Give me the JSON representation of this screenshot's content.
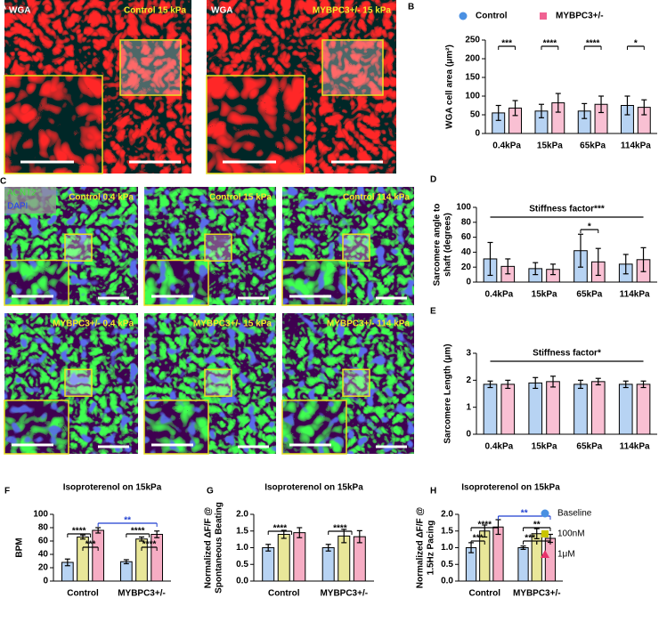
{
  "images": [
    {
      "label": "A",
      "panels": [
        {
          "tag": "WGA",
          "caption": "Control 15 kPa"
        },
        {
          "tag": "WGA",
          "caption": "MYBPC3+/- 15 kPa"
        }
      ]
    },
    {
      "label": "C",
      "stains": [
        "ACNT2",
        "DAPI"
      ],
      "panels": [
        {
          "caption": "Control 0.4 kPa"
        },
        {
          "caption": "Control 15 kPa"
        },
        {
          "caption": "Control 114 kPa"
        },
        {
          "caption": "MYBPC3+/- 0.4 kPa"
        },
        {
          "caption": "MYBPC3+/- 15 kPa"
        },
        {
          "caption": "MYBPC3+/- 114 kPa"
        }
      ]
    }
  ],
  "chart_data": [
    {
      "type": "bar",
      "label": "B",
      "ylabel": [
        "WGA cell area (μm²)"
      ],
      "categories": [
        "0.4kPa",
        "15kPa",
        "65kPa",
        "114kPa"
      ],
      "series": [
        {
          "name": "Control",
          "color": "#4a90e2",
          "marker": "circle",
          "values": [
            55,
            60,
            60,
            75
          ],
          "errors": [
            20,
            18,
            20,
            25
          ]
        },
        {
          "name": "MYBPC3+/-",
          "color": "#f06292",
          "marker": "square",
          "values": [
            68,
            82,
            78,
            70
          ],
          "errors": [
            20,
            25,
            22,
            20
          ]
        }
      ],
      "ylim": [
        0,
        250
      ],
      "yticks": [
        0,
        50,
        100,
        150,
        200,
        250
      ],
      "legend": "top",
      "annotations": [
        {
          "text": "***"
        },
        {
          "text": "****"
        },
        {
          "text": "****"
        },
        {
          "text": "*"
        }
      ]
    },
    {
      "type": "bar",
      "label": "D",
      "ylabel": [
        "Sarcomere angle to",
        "shaft (degrees)"
      ],
      "categories": [
        "0.4kPa",
        "15kPa",
        "65kPa",
        "114kPa"
      ],
      "series": [
        {
          "color": "#4a90e2",
          "values": [
            31,
            18,
            42,
            24
          ],
          "errors": [
            22,
            8,
            22,
            13
          ]
        },
        {
          "color": "#f06292",
          "values": [
            21,
            17,
            27,
            30
          ],
          "errors": [
            10,
            7,
            18,
            16
          ]
        }
      ],
      "ylim": [
        0,
        100
      ],
      "yticks": [
        0,
        20,
        40,
        60,
        80,
        100
      ],
      "annotations": [
        {
          "text": "Stiffness factor***"
        },
        {
          "text": "*"
        }
      ]
    },
    {
      "type": "bar",
      "label": "E",
      "ylabel": [
        "Sarcomere Length (μm)"
      ],
      "categories": [
        "0.4kPa",
        "15kPa",
        "65kPa",
        "114kPa"
      ],
      "series": [
        {
          "color": "#4a90e2",
          "values": [
            1.85,
            1.9,
            1.85,
            1.85
          ],
          "errors": [
            0.12,
            0.2,
            0.15,
            0.12
          ]
        },
        {
          "color": "#f06292",
          "values": [
            1.85,
            1.95,
            1.95,
            1.85
          ],
          "errors": [
            0.15,
            0.2,
            0.12,
            0.12
          ]
        }
      ],
      "ylim": [
        0,
        3
      ],
      "yticks": [
        0,
        1,
        2,
        3
      ],
      "annotations": [
        {
          "text": "Stiffness factor*"
        }
      ]
    },
    {
      "type": "bar",
      "label": "F",
      "title": "Isoproterenol on 15kPa",
      "ylabel": [
        "BPM"
      ],
      "categories": [
        "Control",
        "MYBPC3+/-"
      ],
      "series": [
        {
          "color": "#4a90e2",
          "values": [
            28,
            29
          ],
          "errors": [
            5,
            3
          ]
        },
        {
          "color": "#c9c400",
          "values": [
            66,
            63
          ],
          "errors": [
            3,
            3
          ]
        },
        {
          "color": "#e8336b",
          "values": [
            76,
            70
          ],
          "errors": [
            4,
            5
          ]
        }
      ],
      "ylim": [
        0,
        100
      ],
      "yticks": [
        0,
        20,
        40,
        60,
        80,
        100
      ],
      "annotations": [
        {
          "text": "****"
        },
        {
          "text": "***"
        },
        {
          "text": "****"
        },
        {
          "text": "****"
        },
        {
          "text": "**",
          "color": "#1f3fd0"
        }
      ]
    },
    {
      "type": "bar",
      "label": "G",
      "title": "Isoproterenol on 15kPa",
      "ylabel": [
        "Normalized ΔF/F @",
        "Spontaneous Beating"
      ],
      "categories": [
        "Control",
        "MYBPC3+/-"
      ],
      "series": [
        {
          "color": "#4a90e2",
          "values": [
            1.0,
            1.0
          ],
          "errors": [
            0.1,
            0.1
          ]
        },
        {
          "color": "#c9c400",
          "values": [
            1.4,
            1.35
          ],
          "errors": [
            0.12,
            0.2
          ]
        },
        {
          "color": "#e8336b",
          "values": [
            1.45,
            1.33
          ],
          "errors": [
            0.15,
            0.18
          ]
        }
      ],
      "ylim": [
        0,
        2
      ],
      "yticks": [
        {
          "value": 0,
          "label": "0.0"
        },
        0.5,
        {
          "value": 1,
          "label": "1.0"
        },
        1.5,
        {
          "value": 2,
          "label": "2.0"
        }
      ],
      "annotations": [
        {
          "text": "****"
        },
        {
          "text": "****"
        }
      ]
    },
    {
      "type": "bar",
      "label": "H",
      "title": "Isoproterenol on 15kPa",
      "ylabel": [
        "Normalized ΔF/F @",
        "1.5Hz Pacing"
      ],
      "categories": [
        "Control",
        "MYBPC3+/-"
      ],
      "series": [
        {
          "name": "Baseline",
          "color": "#4a90e2",
          "marker": "circle",
          "values": [
            1.0,
            1.0
          ],
          "errors": [
            0.15,
            0.05
          ]
        },
        {
          "name": "100nM",
          "color": "#c9c400",
          "marker": "square",
          "values": [
            1.5,
            1.42
          ],
          "errors": [
            0.18,
            0.15
          ]
        },
        {
          "name": "1μM",
          "color": "#e8336b",
          "marker": "triangle",
          "values": [
            1.62,
            1.28
          ],
          "errors": [
            0.22,
            0.12
          ]
        }
      ],
      "ylim": [
        0,
        2
      ],
      "yticks": [
        {
          "value": 0,
          "label": "0.0"
        },
        0.5,
        {
          "value": 1,
          "label": "1.0"
        },
        1.5,
        {
          "value": 2,
          "label": "2.0"
        }
      ],
      "legend": "right",
      "annotations": [
        {
          "text": "****"
        },
        {
          "text": "***"
        },
        {
          "text": "**",
          "color": "#1f3fd0"
        },
        {
          "text": "**"
        },
        {
          "text": "***"
        },
        {
          "text": "*"
        }
      ]
    }
  ]
}
